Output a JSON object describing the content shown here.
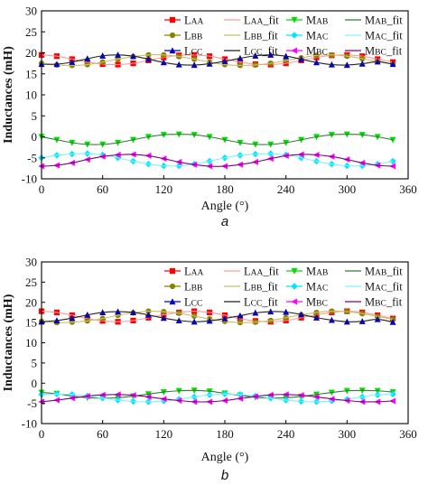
{
  "chart_data": [
    {
      "type": "line",
      "caption": "a",
      "xlabel": "Angle (°)",
      "ylabel": "Inductances (mH)",
      "xlim": [
        0,
        360
      ],
      "ylim": [
        -10,
        30
      ],
      "xticks": [
        0,
        60,
        120,
        180,
        240,
        300,
        360
      ],
      "yticks": [
        -10,
        -5,
        0,
        5,
        10,
        15,
        20,
        25,
        30
      ],
      "legend_placement": "top",
      "x": [
        0,
        15,
        30,
        45,
        60,
        75,
        90,
        105,
        120,
        135,
        150,
        165,
        180,
        195,
        210,
        225,
        240,
        255,
        270,
        285,
        300,
        315,
        330,
        345
      ],
      "series": [
        {
          "name": "LAA",
          "label_main": "L",
          "label_sub": "AA",
          "color": "#ff0000",
          "marker": "square",
          "values": [
            19.5,
            19.2,
            18.5,
            17.8,
            17.3,
            17.2,
            17.5,
            18.2,
            18.9,
            19.4,
            19.5,
            19.2,
            18.5,
            17.8,
            17.3,
            17.2,
            17.5,
            18.2,
            18.9,
            19.4,
            19.5,
            19.2,
            18.5,
            17.8
          ]
        },
        {
          "name": "LAA_fit",
          "label_main": "L",
          "label_sub": "AA",
          "label_suffix": "_fit",
          "color": "#ff9a9a",
          "marker": "none",
          "values": [
            19.5,
            19.2,
            18.5,
            17.8,
            17.3,
            17.2,
            17.5,
            18.2,
            18.9,
            19.4,
            19.5,
            19.2,
            18.5,
            17.8,
            17.3,
            17.2,
            17.5,
            18.2,
            18.9,
            19.4,
            19.5,
            19.2,
            18.5,
            17.8
          ]
        },
        {
          "name": "MAB",
          "label_main": "M",
          "label_sub": "AB",
          "color": "#00dd00",
          "marker": "triangle-down",
          "values": [
            0.0,
            -0.7,
            -1.4,
            -1.8,
            -1.8,
            -1.4,
            -0.7,
            0.0,
            0.5,
            0.6,
            0.5,
            0.0,
            -0.7,
            -1.4,
            -1.8,
            -1.8,
            -1.4,
            -0.7,
            0.0,
            0.5,
            0.6,
            0.5,
            0.0,
            -0.7
          ]
        },
        {
          "name": "MAB_fit",
          "label_main": "M",
          "label_sub": "AB",
          "label_suffix": "_fit",
          "color": "#2e7d32",
          "marker": "none",
          "values": [
            0.0,
            -0.7,
            -1.4,
            -1.8,
            -1.8,
            -1.4,
            -0.7,
            0.0,
            0.5,
            0.6,
            0.5,
            0.0,
            -0.7,
            -1.4,
            -1.8,
            -1.8,
            -1.4,
            -0.7,
            0.0,
            0.5,
            0.6,
            0.5,
            0.0,
            -0.7
          ]
        },
        {
          "name": "LBB",
          "label_main": "L",
          "label_sub": "BB",
          "color": "#8b8000",
          "marker": "circle",
          "values": [
            17.5,
            17.1,
            17.0,
            17.2,
            17.8,
            18.5,
            19.1,
            19.5,
            19.5,
            19.1,
            18.5,
            17.8,
            17.2,
            17.0,
            17.1,
            17.5,
            18.2,
            18.8,
            19.4,
            19.5,
            19.2,
            18.6,
            17.9,
            17.3
          ]
        },
        {
          "name": "LBB_fit",
          "label_main": "L",
          "label_sub": "BB",
          "label_suffix": "_fit",
          "color": "#c8c06a",
          "marker": "none",
          "values": [
            17.5,
            17.1,
            17.0,
            17.2,
            17.8,
            18.5,
            19.1,
            19.5,
            19.5,
            19.1,
            18.5,
            17.8,
            17.2,
            17.0,
            17.1,
            17.5,
            18.2,
            18.8,
            19.4,
            19.5,
            19.2,
            18.6,
            17.9,
            17.3
          ]
        },
        {
          "name": "MAC",
          "label_main": "M",
          "label_sub": "AC",
          "color": "#00e5ff",
          "marker": "diamond",
          "values": [
            -5.0,
            -4.4,
            -4.1,
            -4.0,
            -4.3,
            -5.0,
            -5.8,
            -6.5,
            -6.9,
            -6.9,
            -6.5,
            -5.8,
            -5.0,
            -4.4,
            -4.1,
            -4.0,
            -4.3,
            -5.0,
            -5.8,
            -6.5,
            -6.9,
            -6.9,
            -6.5,
            -5.8
          ]
        },
        {
          "name": "MAC_fit",
          "label_main": "M",
          "label_sub": "AC",
          "label_suffix": "_fit",
          "color": "#80f2ff",
          "marker": "none",
          "values": [
            -5.0,
            -4.4,
            -4.1,
            -4.0,
            -4.3,
            -5.0,
            -5.8,
            -6.5,
            -6.9,
            -6.9,
            -6.5,
            -5.8,
            -5.0,
            -4.4,
            -4.1,
            -4.0,
            -4.3,
            -5.0,
            -5.8,
            -6.5,
            -6.9,
            -6.9,
            -6.5,
            -5.8
          ]
        },
        {
          "name": "LCC",
          "label_main": "L",
          "label_sub": "CC",
          "color": "#0000cc",
          "marker": "triangle-up",
          "values": [
            17.3,
            17.3,
            17.8,
            18.6,
            19.3,
            19.5,
            19.2,
            18.5,
            17.7,
            17.2,
            17.1,
            17.4,
            18.0,
            18.7,
            19.3,
            19.5,
            19.2,
            18.5,
            17.7,
            17.2,
            17.1,
            17.4,
            17.9,
            17.3
          ]
        },
        {
          "name": "LCC_fit",
          "label_main": "L",
          "label_sub": "CC",
          "label_suffix": "_fit",
          "color": "#222222",
          "marker": "none",
          "values": [
            17.3,
            17.3,
            17.8,
            18.6,
            19.3,
            19.5,
            19.2,
            18.5,
            17.7,
            17.2,
            17.1,
            17.4,
            18.0,
            18.7,
            19.3,
            19.5,
            19.2,
            18.5,
            17.7,
            17.2,
            17.1,
            17.4,
            17.9,
            17.3
          ]
        },
        {
          "name": "MBC",
          "label_main": "M",
          "label_sub": "BC",
          "color": "#ff00ff",
          "marker": "triangle-left",
          "values": [
            -7.0,
            -6.8,
            -6.2,
            -5.4,
            -4.7,
            -4.3,
            -4.2,
            -4.5,
            -5.2,
            -6.0,
            -6.6,
            -7.0,
            -7.0,
            -6.6,
            -6.0,
            -5.2,
            -4.5,
            -4.2,
            -4.3,
            -4.7,
            -5.4,
            -6.2,
            -6.8,
            -7.0
          ]
        },
        {
          "name": "MBC_fit",
          "label_main": "M",
          "label_sub": "BC",
          "label_suffix": "_fit",
          "color": "#800080",
          "marker": "none",
          "values": [
            -7.0,
            -6.8,
            -6.2,
            -5.4,
            -4.7,
            -4.3,
            -4.2,
            -4.5,
            -5.2,
            -6.0,
            -6.6,
            -7.0,
            -7.0,
            -6.6,
            -6.0,
            -5.2,
            -4.5,
            -4.2,
            -4.3,
            -4.7,
            -5.4,
            -6.2,
            -6.8,
            -7.0
          ]
        }
      ]
    },
    {
      "type": "line",
      "caption": "b",
      "xlabel": "Angle (°)",
      "ylabel": "Inductances (mH)",
      "xlim": [
        0,
        360
      ],
      "ylim": [
        -10,
        30
      ],
      "xticks": [
        0,
        60,
        120,
        180,
        240,
        300,
        360
      ],
      "yticks": [
        -10,
        -5,
        0,
        5,
        10,
        15,
        20,
        25,
        30
      ],
      "legend_placement": "top",
      "x": [
        0,
        15,
        30,
        45,
        60,
        75,
        90,
        105,
        120,
        135,
        150,
        165,
        180,
        195,
        210,
        225,
        240,
        255,
        270,
        285,
        300,
        315,
        330,
        345
      ],
      "series": [
        {
          "name": "LAA",
          "label_main": "L",
          "label_sub": "AA",
          "color": "#ff0000",
          "marker": "square",
          "values": [
            17.8,
            17.5,
            16.8,
            16.0,
            15.4,
            15.2,
            15.5,
            16.2,
            16.9,
            17.5,
            17.8,
            17.5,
            16.8,
            16.0,
            15.4,
            15.2,
            15.5,
            16.2,
            16.9,
            17.5,
            17.8,
            17.5,
            16.8,
            16.0
          ]
        },
        {
          "name": "LAA_fit",
          "label_main": "L",
          "label_sub": "AA",
          "label_suffix": "_fit",
          "color": "#ff9a9a",
          "marker": "none",
          "values": [
            17.8,
            17.5,
            16.8,
            16.0,
            15.4,
            15.2,
            15.5,
            16.2,
            16.9,
            17.5,
            17.8,
            17.5,
            16.8,
            16.0,
            15.4,
            15.2,
            15.5,
            16.2,
            16.9,
            17.5,
            17.8,
            17.5,
            16.8,
            16.0
          ]
        },
        {
          "name": "MAB",
          "label_main": "M",
          "label_sub": "AB",
          "color": "#00dd00",
          "marker": "triangle-down",
          "values": [
            -2.3,
            -2.6,
            -3.2,
            -3.6,
            -3.7,
            -3.6,
            -3.2,
            -2.7,
            -2.2,
            -1.9,
            -1.8,
            -2.0,
            -2.5,
            -3.0,
            -3.5,
            -3.7,
            -3.6,
            -3.3,
            -2.8,
            -2.3,
            -1.9,
            -1.8,
            -1.9,
            -2.2
          ]
        },
        {
          "name": "MAB_fit",
          "label_main": "M",
          "label_sub": "AB",
          "label_suffix": "_fit",
          "color": "#2e7d32",
          "marker": "none",
          "values": [
            -2.3,
            -2.6,
            -3.2,
            -3.6,
            -3.7,
            -3.6,
            -3.2,
            -2.7,
            -2.2,
            -1.9,
            -1.8,
            -2.0,
            -2.5,
            -3.0,
            -3.5,
            -3.7,
            -3.6,
            -3.3,
            -2.8,
            -2.3,
            -1.9,
            -1.8,
            -1.9,
            -2.2
          ]
        },
        {
          "name": "LBB",
          "label_main": "L",
          "label_sub": "BB",
          "color": "#8b8000",
          "marker": "circle",
          "values": [
            15.3,
            15.0,
            15.1,
            15.4,
            16.0,
            16.8,
            17.4,
            17.8,
            17.7,
            17.3,
            16.6,
            15.9,
            15.3,
            15.0,
            15.1,
            15.5,
            16.2,
            16.9,
            17.5,
            17.8,
            17.7,
            17.2,
            16.5,
            15.8
          ]
        },
        {
          "name": "LBB_fit",
          "label_main": "L",
          "label_sub": "BB",
          "label_suffix": "_fit",
          "color": "#c8c06a",
          "marker": "none",
          "values": [
            15.3,
            15.0,
            15.1,
            15.4,
            16.0,
            16.8,
            17.4,
            17.8,
            17.7,
            17.3,
            16.6,
            15.9,
            15.3,
            15.0,
            15.1,
            15.5,
            16.2,
            16.9,
            17.5,
            17.8,
            17.7,
            17.2,
            16.5,
            15.8
          ]
        },
        {
          "name": "MAC",
          "label_main": "M",
          "label_sub": "AC",
          "color": "#00e5ff",
          "marker": "diamond",
          "values": [
            -2.8,
            -2.7,
            -2.8,
            -3.2,
            -3.7,
            -4.2,
            -4.5,
            -4.6,
            -4.4,
            -4.0,
            -3.4,
            -2.9,
            -2.7,
            -2.8,
            -3.2,
            -3.7,
            -4.2,
            -4.5,
            -4.6,
            -4.4,
            -4.0,
            -3.4,
            -2.9,
            -2.7
          ]
        },
        {
          "name": "MAC_fit",
          "label_main": "M",
          "label_sub": "AC",
          "label_suffix": "_fit",
          "color": "#80f2ff",
          "marker": "none",
          "values": [
            -2.8,
            -2.7,
            -2.8,
            -3.2,
            -3.7,
            -4.2,
            -4.5,
            -4.6,
            -4.4,
            -4.0,
            -3.4,
            -2.9,
            -2.7,
            -2.8,
            -3.2,
            -3.7,
            -4.2,
            -4.5,
            -4.6,
            -4.4,
            -4.0,
            -3.4,
            -2.9,
            -2.7
          ]
        },
        {
          "name": "LCC",
          "label_main": "L",
          "label_sub": "CC",
          "color": "#0000cc",
          "marker": "triangle-up",
          "values": [
            15.2,
            15.5,
            16.1,
            16.9,
            17.5,
            17.7,
            17.5,
            16.9,
            16.1,
            15.5,
            15.2,
            15.4,
            16.0,
            16.7,
            17.4,
            17.7,
            17.6,
            17.0,
            16.2,
            15.6,
            15.2,
            15.3,
            15.8,
            15.1
          ]
        },
        {
          "name": "LCC_fit",
          "label_main": "L",
          "label_sub": "CC",
          "label_suffix": "_fit",
          "color": "#222222",
          "marker": "none",
          "values": [
            15.2,
            15.5,
            16.1,
            16.9,
            17.5,
            17.7,
            17.5,
            16.9,
            16.1,
            15.5,
            15.2,
            15.4,
            16.0,
            16.7,
            17.4,
            17.7,
            17.6,
            17.0,
            16.2,
            15.6,
            15.2,
            15.3,
            15.8,
            15.1
          ]
        },
        {
          "name": "MBC",
          "label_main": "M",
          "label_sub": "BC",
          "color": "#ff00ff",
          "marker": "triangle-left",
          "values": [
            -4.6,
            -4.2,
            -3.7,
            -3.2,
            -2.9,
            -2.8,
            -3.0,
            -3.4,
            -3.9,
            -4.3,
            -4.6,
            -4.6,
            -4.3,
            -3.8,
            -3.3,
            -2.9,
            -2.8,
            -3.0,
            -3.4,
            -3.9,
            -4.3,
            -4.6,
            -4.6,
            -4.4
          ]
        },
        {
          "name": "MBC_fit",
          "label_main": "M",
          "label_sub": "BC",
          "label_suffix": "_fit",
          "color": "#800080",
          "marker": "none",
          "values": [
            -4.6,
            -4.2,
            -3.7,
            -3.2,
            -2.9,
            -2.8,
            -3.0,
            -3.4,
            -3.9,
            -4.3,
            -4.6,
            -4.6,
            -4.3,
            -3.8,
            -3.3,
            -2.9,
            -2.8,
            -3.0,
            -3.4,
            -3.9,
            -4.3,
            -4.6,
            -4.6,
            -4.4
          ]
        }
      ]
    }
  ]
}
